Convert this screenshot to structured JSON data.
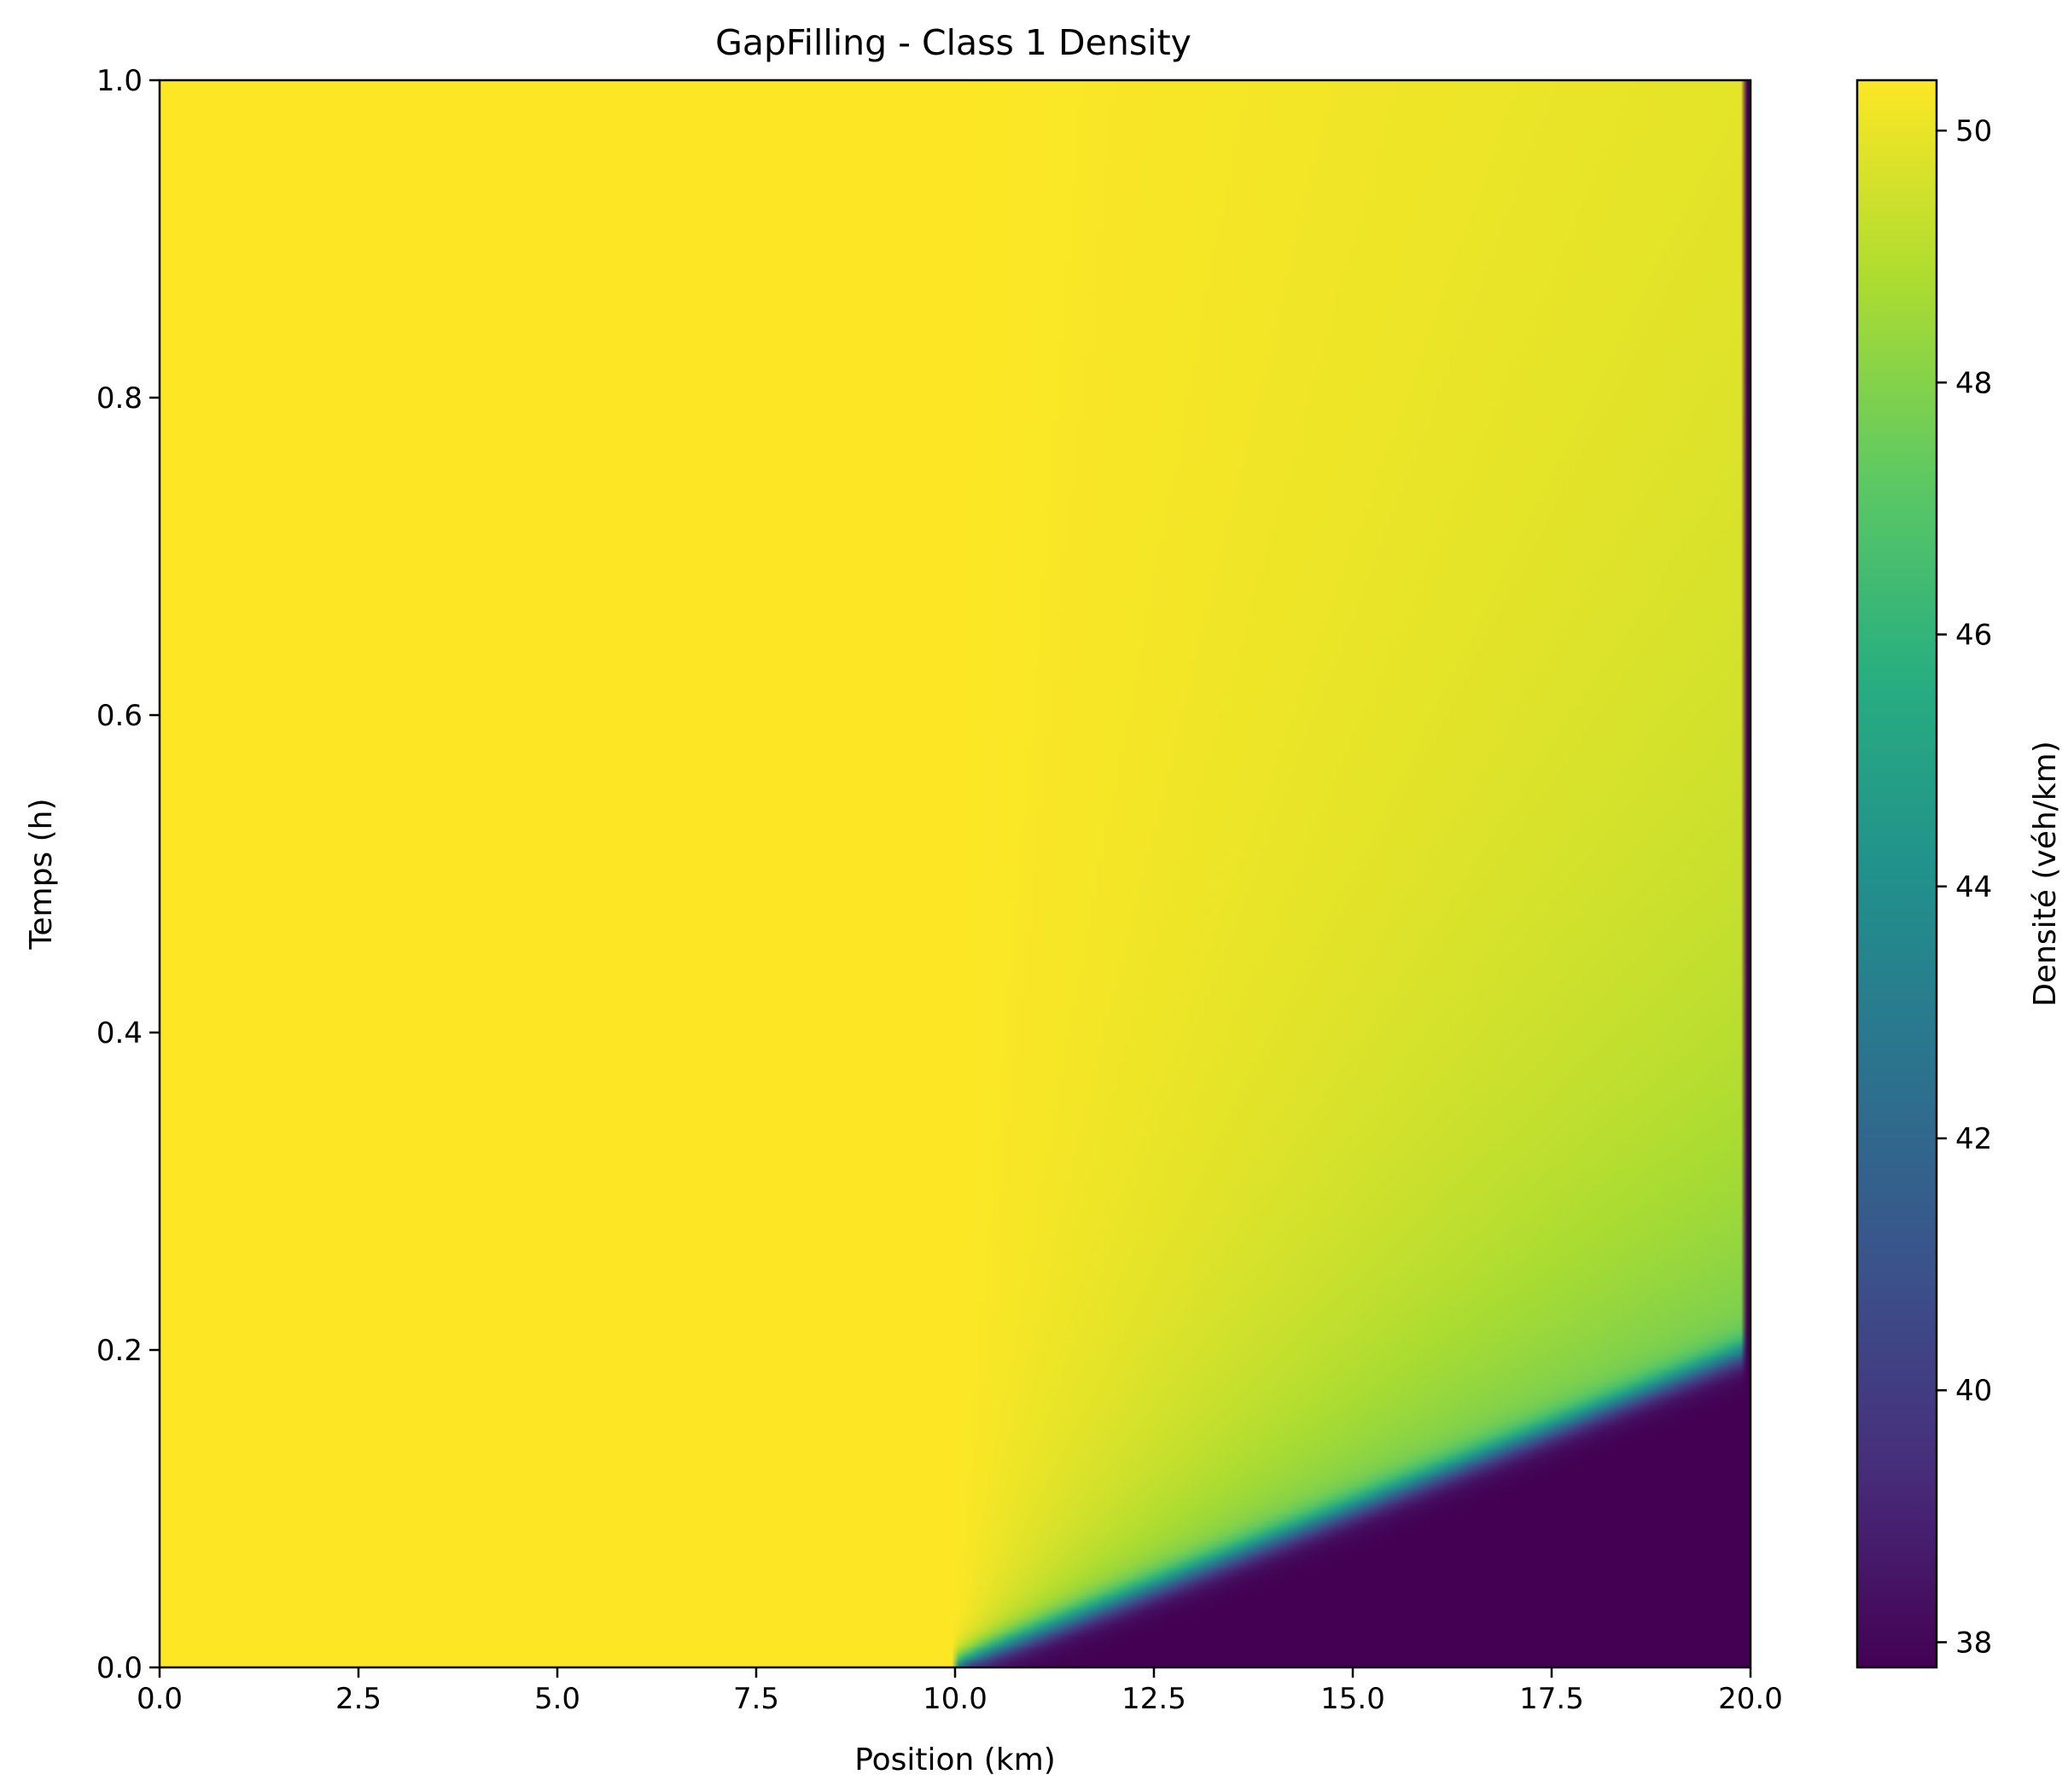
{
  "chart_data": {
    "type": "heatmap",
    "title": "GapFilling - Class 1 Density",
    "xlabel": "Position (km)",
    "ylabel": "Temps (h)",
    "xlim": [
      0,
      20
    ],
    "ylim": [
      0,
      1
    ],
    "x_ticks": [
      "0.0",
      "2.5",
      "5.0",
      "7.5",
      "10.0",
      "12.5",
      "15.0",
      "17.5",
      "20.0"
    ],
    "y_ticks": [
      "0.0",
      "0.2",
      "0.4",
      "0.6",
      "0.8",
      "1.0"
    ],
    "colormap": "viridis",
    "colorbar": {
      "label": "Densité (véh/km)",
      "range": [
        37.8,
        50.4
      ],
      "ticks": [
        "38",
        "40",
        "42",
        "44",
        "46",
        "48",
        "50"
      ]
    },
    "field": {
      "upstream_density": 50.4,
      "downstream_density": 37.8,
      "intermediate_density": 45.0,
      "discontinuity_position": 10.0,
      "shock_front_time_at_20km": 0.2,
      "boundary_column_density": 37.8
    }
  }
}
